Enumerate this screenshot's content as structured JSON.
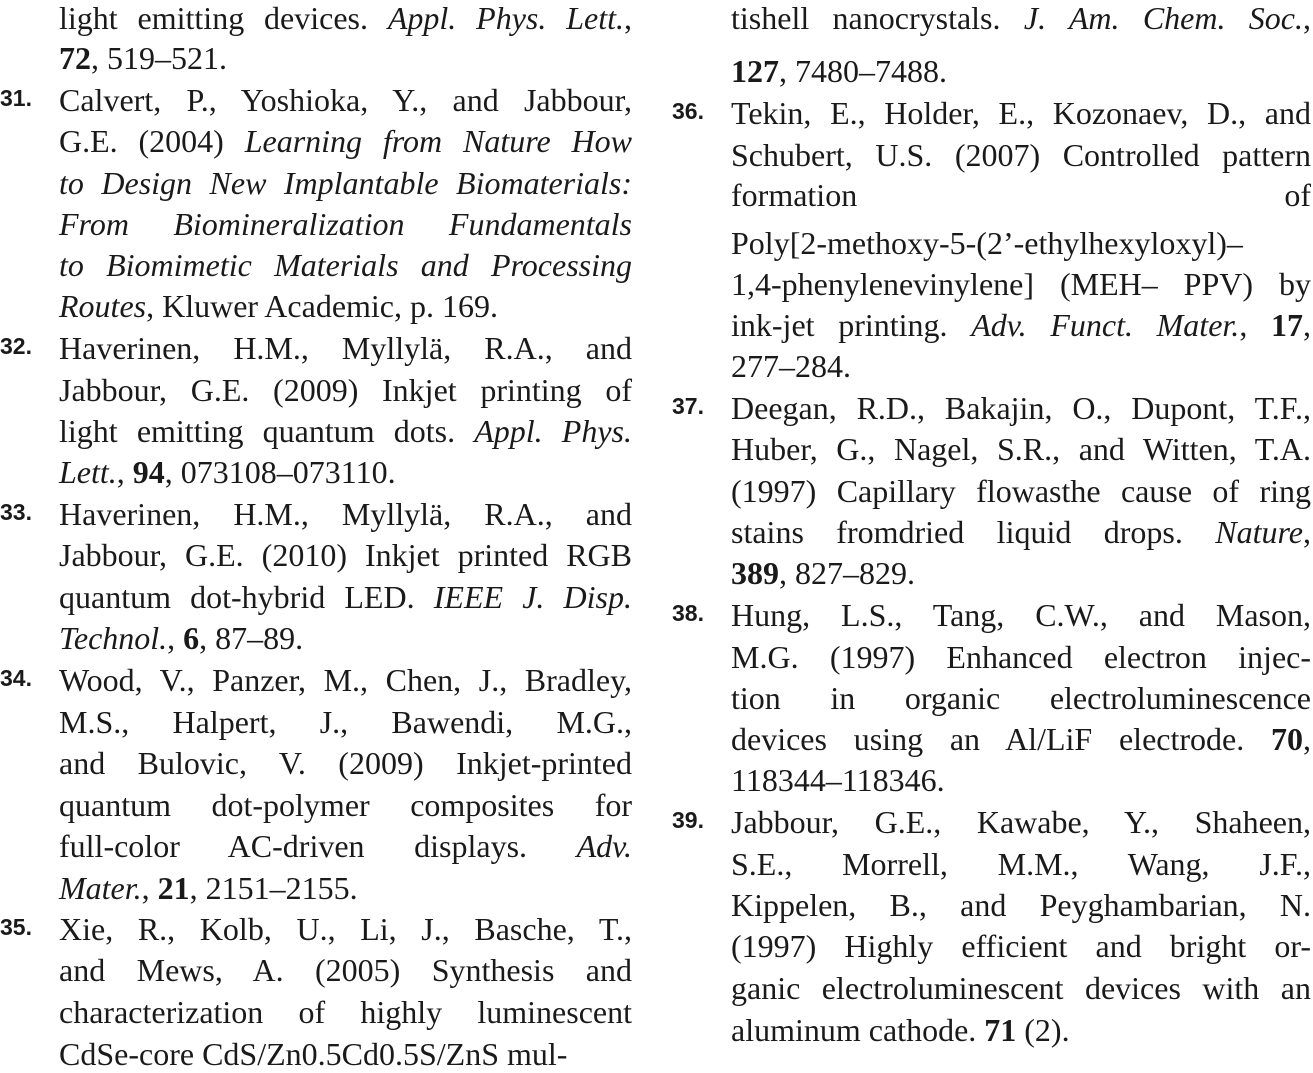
{
  "columns": [
    {
      "entries": [
        {
          "number": "",
          "lines": [
            [
              {
                "t": "light emitting devices. ",
                "s": ""
              },
              {
                "t": "Appl. Phys. Lett.",
                "s": "i"
              },
              {
                "t": ",",
                "s": ""
              }
            ],
            [
              {
                "t": "72",
                "s": "b"
              },
              {
                "t": ", 519–521.",
                "s": ""
              }
            ]
          ]
        },
        {
          "number": "31.",
          "lines": [
            [
              {
                "t": "Calvert, P., Yoshioka, Y., and Jabbour,",
                "s": ""
              }
            ],
            [
              {
                "t": "G.E. (2004) ",
                "s": ""
              },
              {
                "t": "Learning from Nature How",
                "s": "i"
              }
            ],
            [
              {
                "t": "to Design New Implantable Biomaterials:",
                "s": "i"
              }
            ],
            [
              {
                "t": "From Biomineralization Fundamentals",
                "s": "i"
              }
            ],
            [
              {
                "t": "to Biomimetic Materials and Processing",
                "s": "i"
              }
            ],
            [
              {
                "t": "Routes",
                "s": "i"
              },
              {
                "t": ", Kluwer Academic, p. 169.",
                "s": ""
              }
            ]
          ]
        },
        {
          "number": "32.",
          "lines": [
            [
              {
                "t": "Haverinen, H.M., Myllylä, R.A., and",
                "s": ""
              }
            ],
            [
              {
                "t": "Jabbour, G.E. (2009) Inkjet printing of",
                "s": ""
              }
            ],
            [
              {
                "t": "light emitting quantum dots. ",
                "s": ""
              },
              {
                "t": "Appl. Phys.",
                "s": "i"
              }
            ],
            [
              {
                "t": "Lett.",
                "s": "i"
              },
              {
                "t": ", ",
                "s": ""
              },
              {
                "t": "94",
                "s": "b"
              },
              {
                "t": ", 073108–073110.",
                "s": ""
              }
            ]
          ]
        },
        {
          "number": "33.",
          "lines": [
            [
              {
                "t": "Haverinen, H.M., Myllylä, R.A., and",
                "s": ""
              }
            ],
            [
              {
                "t": "Jabbour, G.E. (2010) Inkjet printed RGB",
                "s": ""
              }
            ],
            [
              {
                "t": "quantum dot-hybrid LED. ",
                "s": ""
              },
              {
                "t": "IEEE J. Disp.",
                "s": "i"
              }
            ],
            [
              {
                "t": "Technol.",
                "s": "i"
              },
              {
                "t": ", ",
                "s": ""
              },
              {
                "t": "6",
                "s": "b"
              },
              {
                "t": ", 87–89.",
                "s": ""
              }
            ]
          ]
        },
        {
          "number": "34.",
          "lines": [
            [
              {
                "t": "Wood, V., Panzer, M., Chen, J., Bradley,",
                "s": ""
              }
            ],
            [
              {
                "t": "M.S., Halpert, J., Bawendi, M.G.,",
                "s": ""
              }
            ],
            [
              {
                "t": "and Bulovic, V. (2009) Inkjet-printed",
                "s": ""
              }
            ],
            [
              {
                "t": "quantum dot-polymer composites for",
                "s": ""
              }
            ],
            [
              {
                "t": "full-color AC-driven displays. ",
                "s": ""
              },
              {
                "t": "Adv.",
                "s": "i"
              }
            ],
            [
              {
                "t": "Mater.",
                "s": "i"
              },
              {
                "t": ", ",
                "s": ""
              },
              {
                "t": "21",
                "s": "b"
              },
              {
                "t": ", 2151–2155.",
                "s": ""
              }
            ]
          ]
        },
        {
          "number": "35.",
          "lines": [
            [
              {
                "t": "Xie, R., Kolb, U., Li, J., Basche, T.,",
                "s": ""
              }
            ],
            [
              {
                "t": "and Mews, A. (2005) Synthesis and",
                "s": ""
              }
            ],
            [
              {
                "t": "characterization of highly luminescent",
                "s": ""
              }
            ],
            [
              {
                "t": "CdSe-core CdS/Zn0.5Cd0.5S/ZnS mul-",
                "s": ""
              }
            ]
          ]
        }
      ]
    },
    {
      "entries": [
        {
          "number": "",
          "lines": [
            [
              {
                "t": "tishell nanocrystals. ",
                "s": ""
              },
              {
                "t": "J. Am. Chem. Soc.",
                "s": "i"
              },
              {
                "t": ",",
                "s": ""
              }
            ],
            [
              {
                "t": "127",
                "s": "b"
              },
              {
                "t": ", 7480–7488.",
                "s": ""
              }
            ]
          ]
        },
        {
          "number": "36.",
          "lines": [
            [
              {
                "t": "Tekin, E., Holder, E., Kozonaev, D., and",
                "s": ""
              }
            ],
            [
              {
                "t": "Schubert, U.S. (2007) Controlled pattern",
                "s": ""
              }
            ],
            [
              {
                "t": "formation of",
                "s": ""
              }
            ],
            [
              {
                "t": "Poly[2-methoxy-5-(2’-ethylhexyloxyl)–",
                "s": ""
              }
            ],
            [
              {
                "t": "1,4-phenylenevinylene] (MEH– PPV) by",
                "s": ""
              }
            ],
            [
              {
                "t": "ink-jet printing. ",
                "s": ""
              },
              {
                "t": "Adv. Funct. Mater.",
                "s": "i"
              },
              {
                "t": ", ",
                "s": ""
              },
              {
                "t": "17",
                "s": "b"
              },
              {
                "t": ",",
                "s": ""
              }
            ],
            [
              {
                "t": "277–284.",
                "s": ""
              }
            ]
          ]
        },
        {
          "number": "37.",
          "lines": [
            [
              {
                "t": "Deegan, R.D., Bakajin, O., Dupont, T.F.,",
                "s": ""
              }
            ],
            [
              {
                "t": "Huber, G., Nagel, S.R., and Witten, T.A.",
                "s": ""
              }
            ],
            [
              {
                "t": "(1997) Capillary flowasthe cause of ring",
                "s": ""
              }
            ],
            [
              {
                "t": "stains fromdried liquid drops. ",
                "s": ""
              },
              {
                "t": "Nature",
                "s": "i"
              },
              {
                "t": ",",
                "s": ""
              }
            ],
            [
              {
                "t": "389",
                "s": "b"
              },
              {
                "t": ", 827–829.",
                "s": ""
              }
            ]
          ]
        },
        {
          "number": "38.",
          "lines": [
            [
              {
                "t": "Hung, L.S., Tang, C.W., and Mason,",
                "s": ""
              }
            ],
            [
              {
                "t": "M.G. (1997) Enhanced  electron injec-",
                "s": ""
              }
            ],
            [
              {
                "t": "tion in organic electroluminescence",
                "s": ""
              }
            ],
            [
              {
                "t": "devices using an Al/LiF electrode. ",
                "s": ""
              },
              {
                "t": "70",
                "s": "b"
              },
              {
                "t": ",",
                "s": ""
              }
            ],
            [
              {
                "t": "118344–118346.",
                "s": ""
              }
            ]
          ]
        },
        {
          "number": "39.",
          "lines": [
            [
              {
                "t": "Jabbour, G.E., Kawabe, Y., Shaheen,",
                "s": ""
              }
            ],
            [
              {
                "t": "S.E., Morrell, M.M., Wang, J.F.,",
                "s": ""
              }
            ],
            [
              {
                "t": "Kippelen, B., and Peyghambarian, N.",
                "s": ""
              }
            ],
            [
              {
                "t": "(1997) Highly efficient and bright or-",
                "s": ""
              }
            ],
            [
              {
                "t": "ganic electroluminescent devices with an",
                "s": ""
              }
            ],
            [
              {
                "t": "aluminum cathode. ",
                "s": ""
              },
              {
                "t": "71",
                "s": "b"
              },
              {
                "t": " (2).",
                "s": ""
              }
            ]
          ]
        }
      ]
    }
  ]
}
